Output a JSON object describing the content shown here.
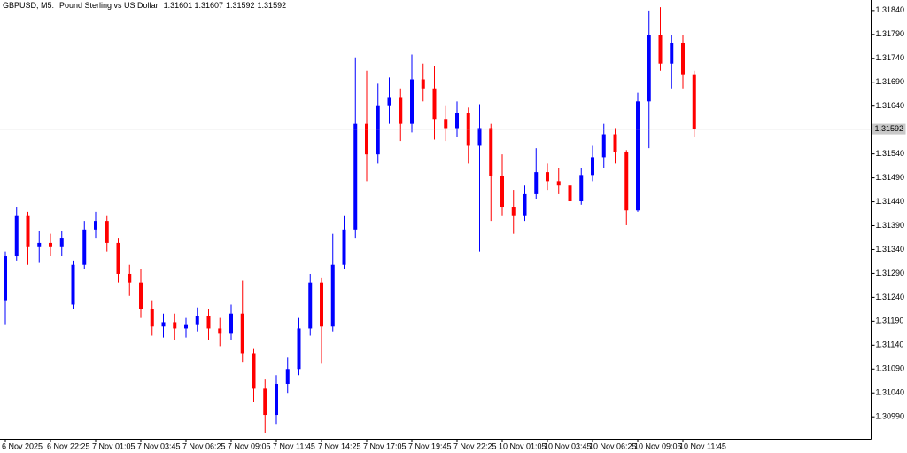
{
  "chart_data": {
    "type": "candlestick",
    "symbol": "GBPUSD, M5:",
    "description": "Pound Sterling vs US Dollar",
    "quote": [
      "1.31601",
      "1.31607",
      "1.31592",
      "1.31592"
    ],
    "categories": [
      "6 Nov 2025",
      null,
      null,
      null,
      "6 Nov 22:25",
      null,
      null,
      null,
      "7 Nov 01:05",
      null,
      null,
      null,
      "7 Nov 03:45",
      null,
      null,
      null,
      "7 Nov 06:25",
      null,
      null,
      null,
      "7 Nov 09:05",
      null,
      null,
      null,
      "7 Nov 11:45",
      null,
      null,
      null,
      "7 Nov 14:25",
      null,
      null,
      null,
      "7 Nov 17:05",
      null,
      null,
      null,
      "7 Nov 19:45",
      null,
      null,
      null,
      "7 Nov 22:25",
      null,
      null,
      null,
      "10 Nov 01:05",
      null,
      null,
      null,
      "10 Nov 03:45",
      null,
      null,
      null,
      "10 Nov 06:25",
      null,
      null,
      null,
      "10 Nov 09:05",
      null,
      null,
      null,
      "10 Nov 11:45",
      null
    ],
    "open": [
      1.31234,
      1.31326,
      1.3141,
      1.31345,
      1.31354,
      1.31345,
      1.31225,
      1.31308,
      1.31382,
      1.314,
      1.31354,
      1.31289,
      1.31271,
      1.31216,
      1.31179,
      1.31188,
      1.31175,
      1.31182,
      1.31201,
      1.31175,
      1.31164,
      1.31206,
      1.31123,
      1.31049,
      1.30994,
      1.31059,
      1.3109,
      1.31175,
      1.31271,
      1.31179,
      1.31308,
      1.31382,
      1.31603,
      1.31539,
      1.3164,
      1.31659,
      1.31603,
      1.31696,
      1.31677,
      1.31613,
      1.31594,
      1.31626,
      1.31557,
      1.31594,
      1.31493,
      1.31428,
      1.3141,
      1.31456,
      1.31502,
      1.31483,
      1.31474,
      1.31441,
      1.31496,
      1.31533,
      1.31581,
      1.31544,
      1.31422,
      1.3165,
      1.31788,
      1.31729,
      1.31773,
      1.31705
    ],
    "high": [
      1.31336,
      1.31428,
      1.31419,
      1.31378,
      1.31373,
      1.31378,
      1.31317,
      1.314,
      1.31419,
      1.3141,
      1.31363,
      1.31308,
      1.31299,
      1.31234,
      1.31206,
      1.31206,
      1.31197,
      1.31219,
      1.31216,
      1.31197,
      1.31225,
      1.31275,
      1.31132,
      1.31068,
      1.31077,
      1.31114,
      1.31197,
      1.31289,
      1.3128,
      1.31373,
      1.3141,
      1.31742,
      1.31714,
      1.31687,
      1.317,
      1.31677,
      1.31748,
      1.31729,
      1.31724,
      1.3164,
      1.3165,
      1.31637,
      1.31644,
      1.31603,
      1.31539,
      1.31465,
      1.31474,
      1.31552,
      1.3152,
      1.31511,
      1.31493,
      1.31511,
      1.31557,
      1.31603,
      1.31594,
      1.31548,
      1.31668,
      1.3184,
      1.31847,
      1.31788,
      1.31788,
      1.31714
    ],
    "low": [
      1.31182,
      1.31317,
      1.31308,
      1.31312,
      1.31326,
      1.31326,
      1.31216,
      1.31299,
      1.31363,
      1.31336,
      1.31271,
      1.31243,
      1.31197,
      1.3116,
      1.31156,
      1.31151,
      1.31156,
      1.31169,
      1.31151,
      1.31138,
      1.31151,
      1.31105,
      1.31022,
      1.30957,
      1.30975,
      1.3104,
      1.31077,
      1.3116,
      1.31101,
      1.31169,
      1.31299,
      1.31363,
      1.31483,
      1.3152,
      1.31603,
      1.31567,
      1.31585,
      1.3165,
      1.3157,
      1.31567,
      1.31576,
      1.3152,
      1.31336,
      1.314,
      1.3141,
      1.31373,
      1.314,
      1.31446,
      1.31465,
      1.31456,
      1.31419,
      1.31434,
      1.31483,
      1.31511,
      1.3152,
      1.31391,
      1.31419,
      1.31552,
      1.31714,
      1.31677,
      1.31677,
      1.31576
    ],
    "close": [
      1.31326,
      1.3141,
      1.31345,
      1.31354,
      1.31345,
      1.31363,
      1.31308,
      1.31382,
      1.314,
      1.31354,
      1.31289,
      1.31271,
      1.31216,
      1.31179,
      1.31188,
      1.31175,
      1.31182,
      1.31201,
      1.31175,
      1.31164,
      1.31206,
      1.31123,
      1.31049,
      1.30994,
      1.31059,
      1.3109,
      1.31175,
      1.31271,
      1.31179,
      1.31308,
      1.31382,
      1.31603,
      1.31539,
      1.3164,
      1.31659,
      1.31603,
      1.31696,
      1.31677,
      1.31613,
      1.31594,
      1.31626,
      1.31557,
      1.31594,
      1.31493,
      1.31428,
      1.3141,
      1.31456,
      1.31502,
      1.31483,
      1.31474,
      1.31441,
      1.31496,
      1.31533,
      1.31581,
      1.31544,
      1.31422,
      1.3165,
      1.31788,
      1.31729,
      1.31773,
      1.31705,
      1.31592
    ],
    "up_color": "#0000ff",
    "down_color": "#ff0000",
    "ylim": [
      1.30944,
      1.31862
    ],
    "yticks": [
      {
        "value": 1.3184,
        "label": "1.31840"
      },
      {
        "value": 1.3179,
        "label": "1.31790"
      },
      {
        "value": 1.3174,
        "label": "1.31740"
      },
      {
        "value": 1.3169,
        "label": "1.31690"
      },
      {
        "value": 1.3164,
        "label": "1.31640"
      },
      {
        "value": 1.3154,
        "label": "1.31540"
      },
      {
        "value": 1.3149,
        "label": "1.31490"
      },
      {
        "value": 1.3144,
        "label": "1.31440"
      },
      {
        "value": 1.3139,
        "label": "1.31390"
      },
      {
        "value": 1.3134,
        "label": "1.31340"
      },
      {
        "value": 1.3129,
        "label": "1.31290"
      },
      {
        "value": 1.3124,
        "label": "1.31240"
      },
      {
        "value": 1.3119,
        "label": "1.31190"
      },
      {
        "value": 1.3114,
        "label": "1.31140"
      },
      {
        "value": 1.3109,
        "label": "1.31090"
      },
      {
        "value": 1.3104,
        "label": "1.31040"
      },
      {
        "value": 1.3099,
        "label": "1.30990"
      }
    ],
    "bid_line": {
      "value": 1.31592,
      "label": "1.31592"
    },
    "grid": false
  }
}
